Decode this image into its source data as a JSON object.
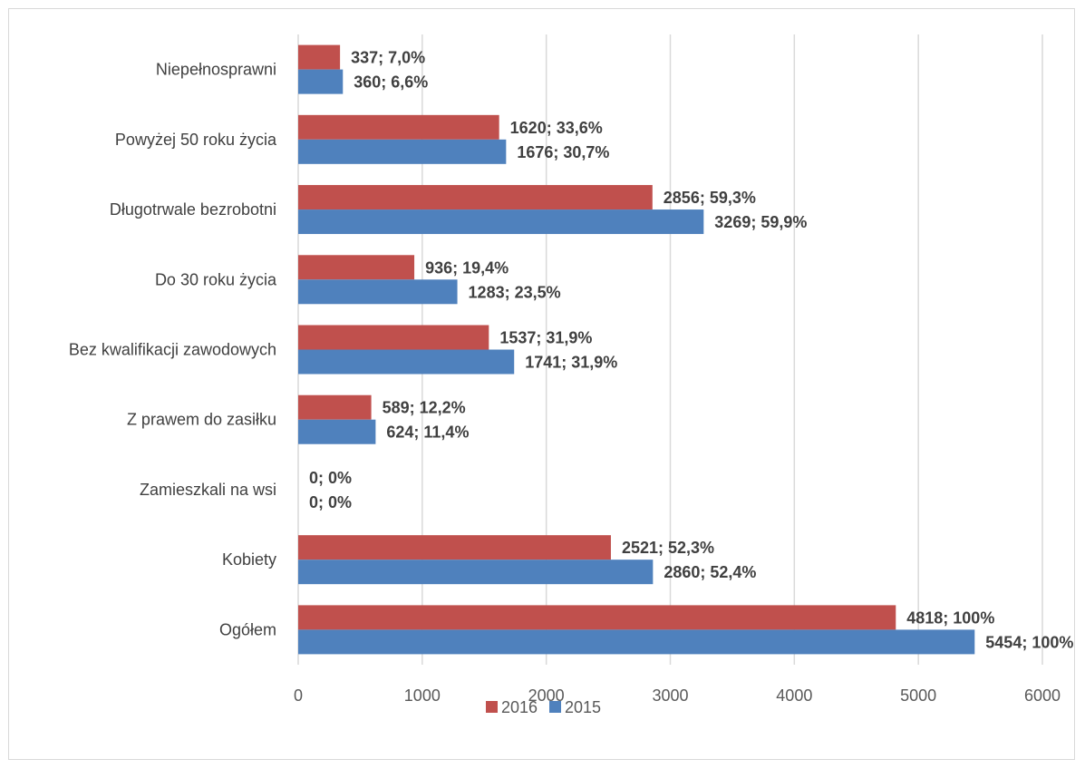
{
  "chart_data": {
    "type": "bar",
    "orientation": "horizontal",
    "categories": [
      "Niepełnosprawni",
      "Powyżej 50 roku życia",
      "Długotrwale bezrobotni",
      "Do 30 roku życia",
      "Bez kwalifikacji zawodowych",
      "Z prawem do zasiłku",
      "Zamieszkali na wsi",
      "Kobiety",
      "Ogółem"
    ],
    "series": [
      {
        "name": "2016",
        "color": "#c0504d",
        "values": [
          337,
          1620,
          2856,
          936,
          1537,
          589,
          0,
          2521,
          4818
        ],
        "labels": [
          "337;  7,0%",
          "1620;  33,6%",
          "2856;  59,3%",
          "936;  19,4%",
          "1537;  31,9%",
          "589;  12,2%",
          "0;  0%",
          "2521;  52,3%",
          "4818;  100%"
        ]
      },
      {
        "name": "2015",
        "color": "#4f81bd",
        "values": [
          360,
          1676,
          3269,
          1283,
          1741,
          624,
          0,
          2860,
          5454
        ],
        "labels": [
          "360;  6,6%",
          "1676;  30,7%",
          "3269;  59,9%",
          "1283;  23,5%",
          "1741;  31,9%",
          "624;  11,4%",
          "0;  0%",
          "2860;  52,4%",
          "5454;  100%"
        ]
      }
    ],
    "xlim": [
      0,
      6000
    ],
    "xticks": [
      "0",
      "1000",
      "2000",
      "3000",
      "4000",
      "5000",
      "6000"
    ],
    "grid": "vertical",
    "legend": "bottom",
    "gridColor": "#d9d9d9"
  }
}
